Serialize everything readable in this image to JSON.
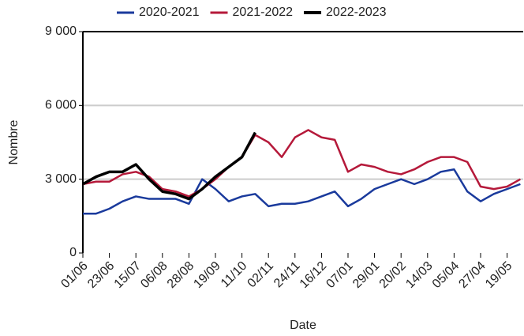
{
  "chart_data": {
    "type": "line",
    "x_label": "Date",
    "y_label": "Nombre",
    "categories": [
      "01/06",
      null,
      "23/06",
      null,
      "15/07",
      null,
      "06/08",
      null,
      "28/08",
      null,
      "19/09",
      null,
      "11/10",
      null,
      "02/11",
      null,
      "24/11",
      null,
      "16/12",
      null,
      "07/01",
      null,
      "29/01",
      null,
      "20/02",
      null,
      "14/03",
      null,
      "05/04",
      null,
      "27/04",
      null,
      "19/05",
      null
    ],
    "series": [
      {
        "name": "2020-2021",
        "color": "#1a3a9c",
        "values": [
          1600,
          1600,
          1800,
          2100,
          2300,
          2200,
          2200,
          2200,
          2000,
          3000,
          2600,
          2100,
          2300,
          2400,
          1900,
          2000,
          2000,
          2100,
          2300,
          2500,
          1900,
          2200,
          2600,
          2800,
          3000,
          2800,
          3000,
          3300,
          3400,
          2500,
          2100,
          2400,
          2600,
          2800
        ]
      },
      {
        "name": "2021-2022",
        "color": "#b5193a",
        "values": [
          2800,
          2900,
          2900,
          3200,
          3300,
          3100,
          2600,
          2500,
          2300,
          2600,
          3000,
          3500,
          3900,
          4800,
          4500,
          3900,
          4700,
          5000,
          4700,
          4600,
          3300,
          3600,
          3500,
          3300,
          3200,
          3400,
          3700,
          3900,
          3900,
          3700,
          2700,
          2600,
          2700,
          3000
        ]
      },
      {
        "name": "2022-2023",
        "color": "#000000",
        "values": [
          2800,
          3100,
          3300,
          3300,
          3600,
          3000,
          2500,
          2400,
          2200,
          2600,
          3100,
          3500,
          3900,
          4900,
          null,
          null,
          null,
          null,
          null,
          null,
          null,
          null,
          null,
          null,
          null,
          null,
          null,
          null,
          null,
          null,
          null,
          null,
          null,
          null
        ]
      }
    ],
    "ylim": [
      0,
      9000
    ],
    "yticks": [
      0,
      {
        "value": 3000,
        "label": "3 000"
      },
      {
        "value": 6000,
        "label": "6 000"
      },
      {
        "value": 9000,
        "label": "9 000"
      }
    ],
    "grid": true,
    "legend": "top"
  }
}
